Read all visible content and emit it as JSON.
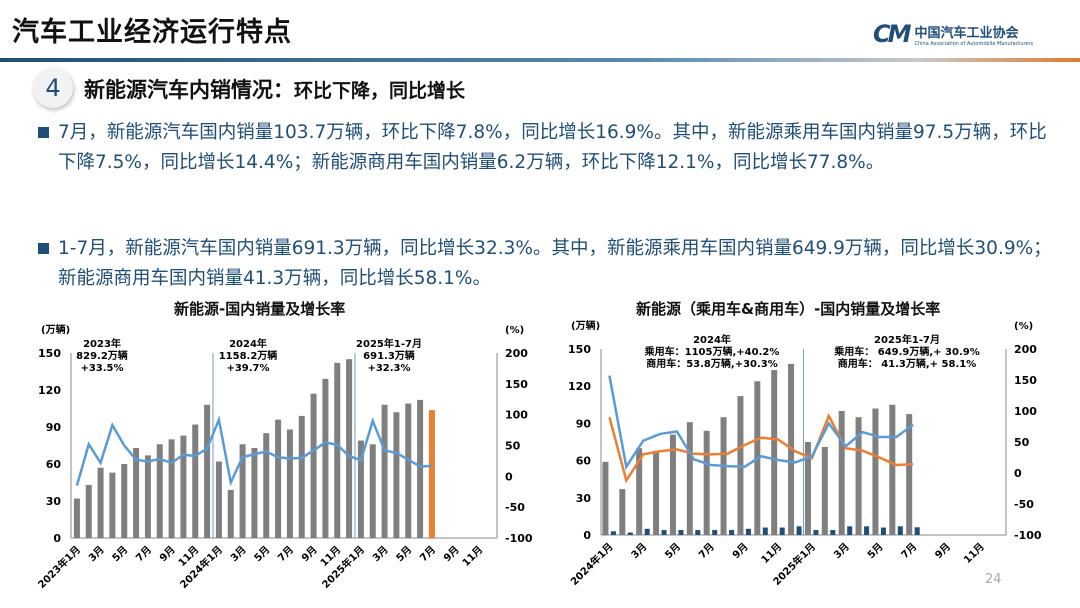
{
  "header": {
    "title": "汽车工业经济运行特点",
    "logo_cn": "中国汽车工业协会",
    "logo_en": "China Association of Automobile Manufacturers",
    "logo_mark": "CM"
  },
  "section": {
    "number": "4",
    "title": "新能源汽车内销情况：",
    "title_suffix": "环比下降，同比增长"
  },
  "paragraphs": [
    "7月，新能源汽车国内销量103.7万辆，环比下降7.8%，同比增长16.9%。其中，新能源乘用车国内销量97.5万辆，环比下降7.5%，同比增长14.4%；新能源商用车国内销量6.2万辆，环比下降12.1%，同比增长77.8%。",
    "1-7月，新能源汽车国内销量691.3万辆，同比增长32.3%。其中，新能源乘用车国内销量649.9万辆，同比增长30.9%；新能源商用车国内销量41.3万辆，同比增长58.1%。"
  ],
  "page_number": "24",
  "colors": {
    "bar": "#7f7f7f",
    "highlight": "#ed7d31",
    "line_blue": "#5b9bd5",
    "line_orange": "#ed7d31",
    "commercial_bar": "#1f4e79"
  },
  "chart_data": [
    {
      "type": "bar+line",
      "title": "新能源-国内销量及增长率",
      "ylabel": "(万辆)",
      "y2label": "(%)",
      "ylim": [
        0,
        150
      ],
      "y2lim": [
        -100,
        200
      ],
      "yticks": [
        "0",
        "30",
        "60",
        "90",
        "120",
        "150"
      ],
      "y2ticks": [
        "-100",
        "-50",
        "0",
        "50",
        "100",
        "150",
        "200"
      ],
      "xticks": [
        "2023年1月",
        "3月",
        "5月",
        "7月",
        "9月",
        "11月",
        "2024年1月",
        "3月",
        "5月",
        "7月",
        "9月",
        "11月",
        "2025年1月",
        "3月",
        "5月",
        "7月",
        "9月",
        "11月"
      ],
      "annotations": [
        [
          "2023年",
          "829.2万辆",
          "+33.5%"
        ],
        [
          "2024年",
          "1158.2万辆",
          "+39.7%"
        ],
        [
          "2025年1-7月",
          "691.3万辆",
          "+32.3%"
        ]
      ],
      "sales": [
        32,
        43,
        57,
        53,
        60,
        73,
        67,
        76,
        80,
        83,
        92,
        108,
        62,
        39,
        76,
        73,
        85,
        96,
        88,
        99,
        117,
        129,
        142,
        145,
        79,
        76,
        108,
        102,
        109,
        112,
        103.7
      ],
      "growth": [
        -15,
        52,
        22,
        83,
        50,
        27,
        24,
        28,
        22,
        35,
        33,
        45,
        92,
        -10,
        31,
        36,
        40,
        31,
        29,
        30,
        42,
        55,
        51,
        33,
        26,
        90,
        42,
        38,
        27,
        16,
        16.9
      ]
    },
    {
      "type": "bar+line",
      "title": "新能源（乘用车&商用车）-国内销量及增长率",
      "ylabel": "(万辆)",
      "y2label": "(%)",
      "ylim": [
        0,
        150
      ],
      "y2lim": [
        -100,
        200
      ],
      "yticks": [
        "0",
        "30",
        "60",
        "90",
        "120",
        "150"
      ],
      "y2ticks": [
        "-100",
        "-50",
        "0",
        "50",
        "100",
        "150",
        "200"
      ],
      "xticks": [
        "2024年1月",
        "3月",
        "5月",
        "7月",
        "9月",
        "11月",
        "2025年1月",
        "3月",
        "5月",
        "7月",
        "9月",
        "11月"
      ],
      "annotations": [
        [
          "2024年",
          "乘用车：1105万辆,+40.2%",
          "商用车：53.8万辆,+30.3%"
        ],
        [
          "2025年1-7月",
          "乘用车： 649.9万辆,+ 30.9%",
          "商用车： 41.3万辆,+ 58.1%"
        ]
      ],
      "passenger_sales": [
        59,
        37,
        70,
        68,
        81,
        91,
        84,
        95,
        112,
        124,
        133,
        138,
        75,
        71,
        100,
        95,
        102,
        105,
        97.5
      ],
      "commercial_sales": [
        3,
        2,
        5,
        4,
        4,
        4,
        4,
        4,
        5,
        6,
        6,
        7,
        4,
        4,
        7,
        7,
        6,
        7,
        6.2
      ],
      "passenger_growth": [
        90,
        -12,
        30,
        35,
        38,
        31,
        30,
        31,
        45,
        57,
        54,
        35,
        24,
        92,
        40,
        36,
        25,
        13,
        14.4
      ],
      "commercial_growth": [
        157,
        10,
        52,
        63,
        67,
        22,
        13,
        11,
        10,
        27,
        21,
        17,
        27,
        80,
        43,
        66,
        58,
        58,
        77.8
      ]
    }
  ]
}
